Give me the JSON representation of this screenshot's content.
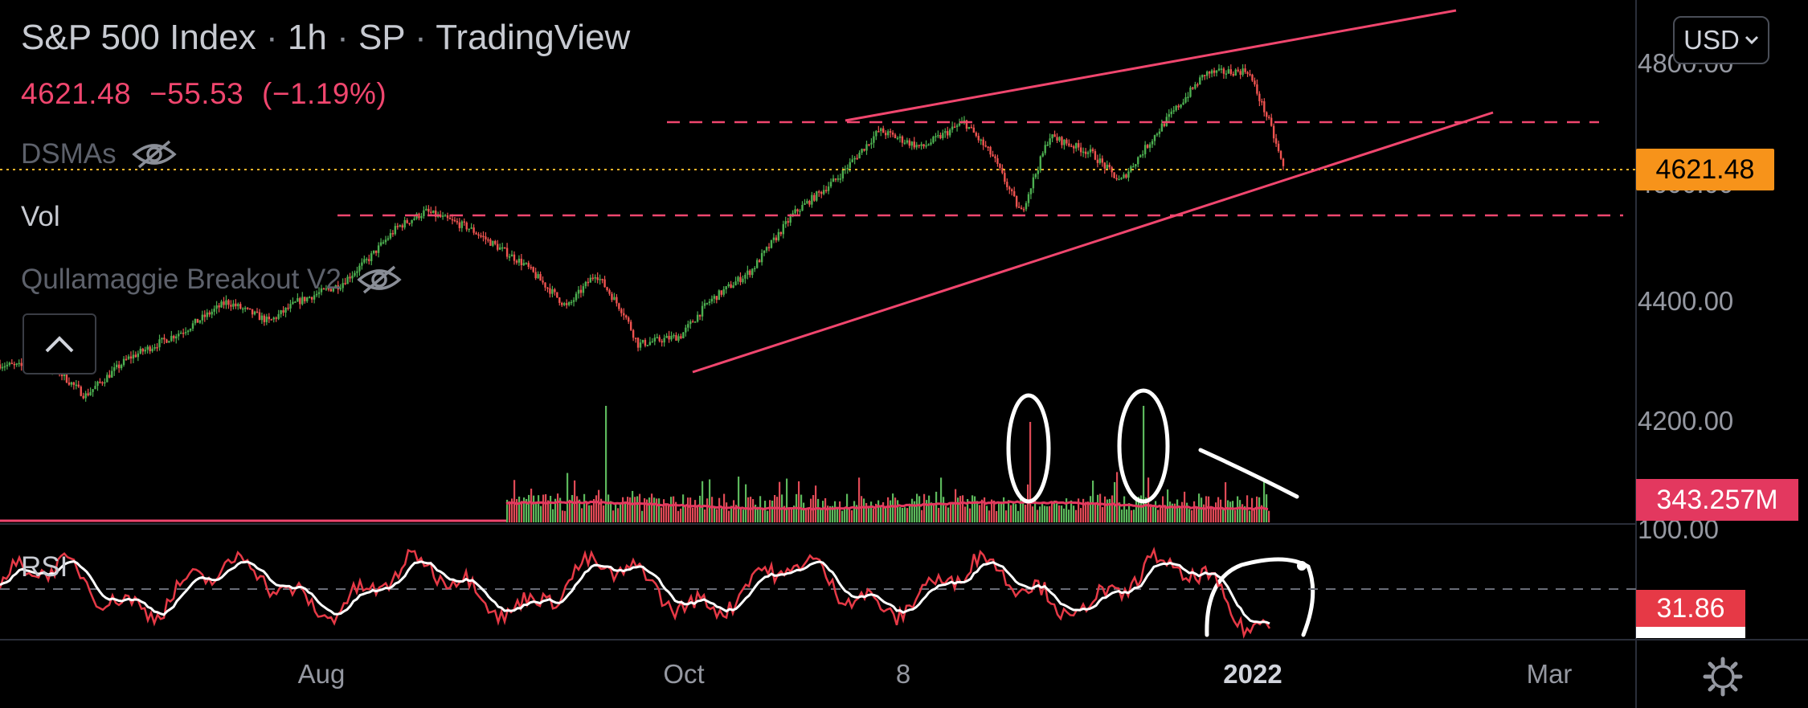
{
  "header": {
    "symbol": "S&P 500 Index",
    "sep": "·",
    "interval": "1h",
    "exchange": "SP",
    "source": "TradingView",
    "last_price": "4621.48",
    "change": "−55.53",
    "change_pct": "(−1.19%)"
  },
  "indicators": {
    "dsmas": "DSMAs",
    "vol": "Vol",
    "qullamaggie": "Qullamaggie Breakout V2",
    "rsi": "RSI"
  },
  "currency_button": {
    "label": "USD"
  },
  "price_axis": [
    "4800.00",
    "4600.00",
    "4400.00",
    "4200.00"
  ],
  "rsi_axis_top": "100.00",
  "tags": {
    "last_price": "4621.48",
    "volume": "343.257M",
    "rsi": "31.86"
  },
  "time_axis": [
    "Aug",
    "Oct",
    "8",
    "2022",
    "Mar"
  ],
  "colors": {
    "up": "#4caf50",
    "down": "#ef5350",
    "trendline": "#f0466e",
    "last_price_line": "#f7b32b",
    "rsi_line": "#e63946",
    "rsi_ma": "#ffffff"
  },
  "icons": {
    "hide": "eye-slash-icon",
    "collapse": "chevron-up-icon",
    "dropdown": "chevron-down-icon",
    "settings": "gear-icon"
  },
  "chart_data": {
    "type": "candlestick",
    "title": "S&P 500 Index · 1h · SP",
    "price_ticks": [
      4800,
      4600,
      4400,
      4200
    ],
    "ylim": [
      4100,
      4850
    ],
    "last_price": 4621.48,
    "x_labels": [
      "Aug",
      "Oct",
      "8",
      "2022",
      "Mar"
    ],
    "path": [
      [
        0,
        4280
      ],
      [
        0.04,
        4270
      ],
      [
        0.06,
        4225
      ],
      [
        0.09,
        4290
      ],
      [
        0.13,
        4340
      ],
      [
        0.16,
        4390
      ],
      [
        0.19,
        4355
      ],
      [
        0.21,
        4390
      ],
      [
        0.24,
        4420
      ],
      [
        0.26,
        4465
      ],
      [
        0.28,
        4520
      ],
      [
        0.3,
        4548
      ],
      [
        0.33,
        4520
      ],
      [
        0.37,
        4455
      ],
      [
        0.4,
        4380
      ],
      [
        0.42,
        4440
      ],
      [
        0.44,
        4370
      ],
      [
        0.45,
        4315
      ],
      [
        0.48,
        4330
      ],
      [
        0.5,
        4390
      ],
      [
        0.53,
        4445
      ],
      [
        0.56,
        4545
      ],
      [
        0.59,
        4605
      ],
      [
        0.62,
        4690
      ],
      [
        0.65,
        4660
      ],
      [
        0.68,
        4705
      ],
      [
        0.7,
        4645
      ],
      [
        0.72,
        4545
      ],
      [
        0.74,
        4680
      ],
      [
        0.77,
        4650
      ],
      [
        0.79,
        4600
      ],
      [
        0.82,
        4700
      ],
      [
        0.85,
        4790
      ],
      [
        0.88,
        4795
      ],
      [
        0.895,
        4705
      ],
      [
        0.905,
        4625
      ]
    ],
    "resistance_levels": [
      4705,
      4550
    ],
    "rsi": {
      "ylim": [
        0,
        100
      ],
      "top_tick": 100,
      "mid_level": 50,
      "last": 31.86
    }
  }
}
